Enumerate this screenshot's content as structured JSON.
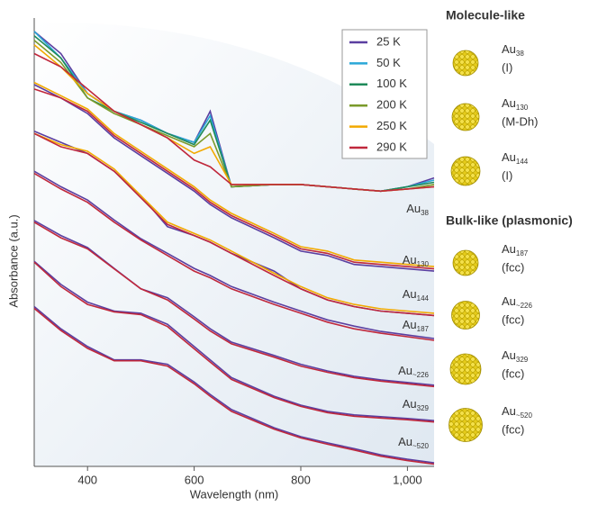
{
  "chart_data": {
    "type": "line",
    "x_label": "Wavelength (nm)",
    "y_label": "Absorbance (a.u.)",
    "xlim": [
      300,
      1050
    ],
    "ylim": [
      0,
      100
    ],
    "xticks": [
      400,
      600,
      800,
      {
        "value": 1000,
        "label": "1,000"
      }
    ],
    "x": [
      300,
      350,
      400,
      450,
      500,
      550,
      600,
      630,
      670,
      750,
      800,
      850,
      900,
      950,
      1000,
      1050
    ],
    "series": [
      {
        "name": "25 K",
        "color": "#5b3fa0"
      },
      {
        "name": "50 K",
        "color": "#2aa7d8"
      },
      {
        "name": "100 K",
        "color": "#1f8a5a"
      },
      {
        "name": "200 K",
        "color": "#7a9a2a"
      },
      {
        "name": "250 K",
        "color": "#f2a900"
      },
      {
        "name": "290 K",
        "color": "#c0283c"
      }
    ],
    "samples": [
      {
        "label": "Au",
        "subscript": "38",
        "curves": [
          [
            98,
            93,
            84,
            80,
            78,
            75,
            73,
            80,
            63,
            63.5,
            63.5,
            63,
            62.5,
            62,
            63,
            65
          ],
          [
            98,
            92,
            84,
            80,
            78,
            75,
            73,
            79,
            63,
            63.5,
            63.5,
            63,
            62.5,
            62,
            63,
            64.5
          ],
          [
            97,
            92,
            83,
            80,
            77.5,
            75,
            72.5,
            78,
            63,
            63.5,
            63.5,
            63,
            62.5,
            62,
            63,
            64
          ],
          [
            96,
            91,
            83,
            79.5,
            77,
            74.5,
            72,
            75,
            63,
            63.5,
            63.5,
            63,
            62.5,
            62,
            62.5,
            63.5
          ],
          [
            95,
            90,
            84,
            80,
            77,
            74,
            70.5,
            72,
            63.5,
            63.5,
            63.5,
            63,
            62.5,
            62,
            62.5,
            63
          ],
          [
            93,
            90,
            85,
            80,
            77,
            74,
            69,
            67.5,
            63.5,
            63.5,
            63.5,
            63,
            62.5,
            62,
            62.5,
            63
          ]
        ]
      },
      {
        "label": "Au",
        "subscript": "130",
        "curves": [
          [
            86,
            83,
            79.5,
            74,
            70,
            66,
            62,
            59,
            56,
            51.5,
            48.5,
            47.5,
            45.5,
            45,
            44.5,
            44
          ],
          null,
          null,
          null,
          [
            86.5,
            83.5,
            80.5,
            75,
            71,
            67,
            63,
            60,
            57,
            52.5,
            49.5,
            48.5,
            46.5,
            46,
            45.5,
            45
          ],
          [
            85,
            83,
            80,
            74.5,
            70.5,
            66.5,
            62.5,
            59.5,
            56.5,
            52,
            49,
            48,
            46,
            45.5,
            45,
            44.5
          ]
        ]
      },
      {
        "label": "Au",
        "subscript": "144",
        "curves": [
          [
            75.5,
            73,
            70.5,
            66.5,
            61,
            54,
            52,
            50.5,
            48,
            44,
            40,
            37.5,
            36,
            35,
            34.5,
            34
          ],
          null,
          null,
          null,
          [
            75,
            72.5,
            71,
            67,
            61,
            55,
            52.5,
            51,
            48.5,
            43.5,
            40.5,
            38,
            36.5,
            35.5,
            35,
            34.5
          ],
          [
            75,
            72,
            70.5,
            66.5,
            60.5,
            54.5,
            52,
            50.5,
            48,
            43,
            40,
            37.5,
            36,
            35,
            34.5,
            34
          ]
        ]
      },
      {
        "label": "Au",
        "subscript": "187",
        "curves": [
          [
            66.5,
            63,
            60,
            55.5,
            51.3,
            48,
            44.6,
            43,
            40.5,
            37,
            35,
            33,
            31.6,
            30.4,
            29.6,
            28.8
          ],
          null,
          null,
          null,
          null,
          [
            66,
            62.5,
            59.5,
            55,
            51,
            47.5,
            44,
            42.5,
            40,
            36.5,
            34.5,
            32.5,
            31,
            30,
            29.2,
            28.4
          ]
        ]
      },
      {
        "label": "Au",
        "subscript": "~226",
        "curves": [
          [
            55.4,
            52,
            49.3,
            44.6,
            40,
            38,
            33.7,
            31,
            28,
            25,
            23,
            21.5,
            20.3,
            19.5,
            18.9,
            18.3
          ],
          null,
          null,
          null,
          null,
          [
            55,
            51.5,
            49,
            44.5,
            40,
            37.5,
            33.2,
            30.5,
            27.6,
            24.6,
            22.6,
            21.2,
            20,
            19.2,
            18.6,
            18
          ]
        ]
      },
      {
        "label": "Au",
        "subscript": "329",
        "curves": [
          [
            46.2,
            41,
            37,
            35,
            34.5,
            32,
            27,
            24,
            20,
            15.8,
            13.8,
            12.4,
            11.6,
            11.2,
            10.8,
            10.3
          ],
          null,
          null,
          null,
          null,
          [
            46,
            40.5,
            36.5,
            34.8,
            34.2,
            31.5,
            26.5,
            23.5,
            19.6,
            15.5,
            13.5,
            12.1,
            11.3,
            10.9,
            10.5,
            10
          ]
        ]
      },
      {
        "label": "Au",
        "subscript": "~520",
        "curves": [
          [
            36,
            31,
            27,
            24,
            24,
            23,
            19,
            16.2,
            12.8,
            8.7,
            6.7,
            5.3,
            4,
            2.6,
            1.6,
            0.8
          ],
          null,
          null,
          null,
          null,
          [
            35.6,
            30.6,
            26.6,
            23.8,
            23.8,
            22.6,
            18.6,
            15.8,
            12.4,
            8.4,
            6.4,
            5,
            3.7,
            2.3,
            1.3,
            0.5
          ]
        ]
      }
    ]
  },
  "panel": {
    "sections": [
      {
        "title": "Molecule-like",
        "items": [
          {
            "label": "Au",
            "subscript": "38",
            "structure": "(I)"
          },
          {
            "label": "Au",
            "subscript": "130",
            "structure": "(M-Dh)"
          },
          {
            "label": "Au",
            "subscript": "144",
            "structure": "(I)"
          }
        ]
      },
      {
        "title": "Bulk-like (plasmonic)",
        "items": [
          {
            "label": "Au",
            "subscript": "187",
            "structure": "(fcc)"
          },
          {
            "label": "Au",
            "subscript": "~226",
            "structure": "(fcc)"
          },
          {
            "label": "Au",
            "subscript": "329",
            "structure": "(fcc)"
          },
          {
            "label": "Au",
            "subscript": "~520",
            "structure": "(fcc)"
          }
        ]
      }
    ]
  }
}
